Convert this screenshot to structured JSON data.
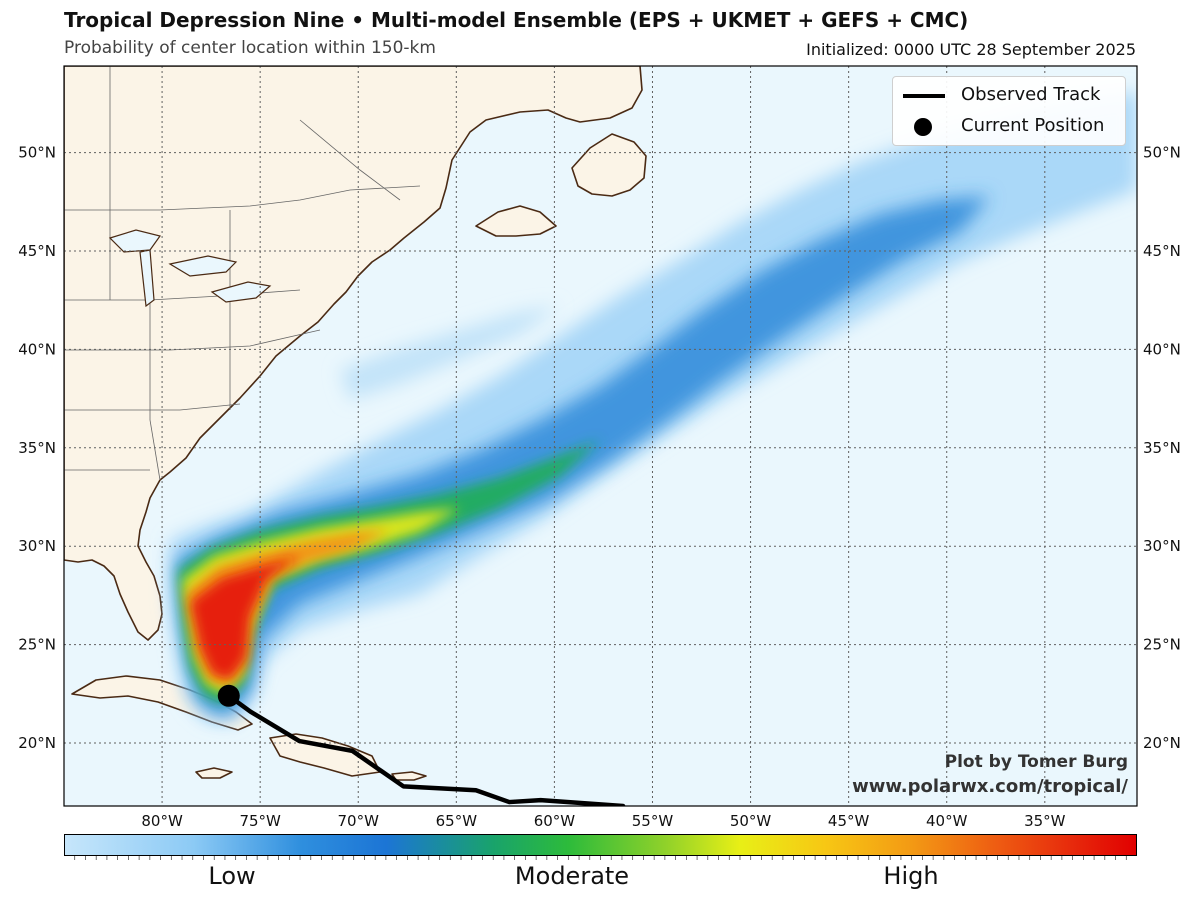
{
  "header": {
    "title": "Tropical Depression Nine • Multi-model Ensemble (EPS + UKMET + GEFS + CMC)",
    "subtitle": "Probability of center location within 150-km",
    "initialized": "Initialized: 0000 UTC 28 September 2025"
  },
  "map": {
    "lon_labels": [
      "80°W",
      "75°W",
      "70°W",
      "65°W",
      "60°W",
      "55°W",
      "50°W",
      "45°W",
      "40°W",
      "35°W"
    ],
    "lat_labels": [
      "20°N",
      "25°N",
      "30°N",
      "35°N",
      "40°N",
      "45°N",
      "50°N"
    ],
    "lon_values": [
      -80,
      -75,
      -70,
      -65,
      -60,
      -55,
      -50,
      -45,
      -40,
      -35
    ],
    "lat_values": [
      20,
      25,
      30,
      35,
      40,
      45,
      50
    ],
    "extent": {
      "lon": [
        -85,
        -30.3
      ],
      "lat": [
        16.8,
        54.4
      ]
    },
    "colors": {
      "ocean": "#eaf7fd",
      "land": "#fbf4e7",
      "coast": "#4a2a14",
      "grid": "#606060"
    },
    "observed_track": [
      [
        -76.6,
        22.4
      ],
      [
        -75.5,
        21.6
      ],
      [
        -73.0,
        20.1
      ],
      [
        -70.3,
        19.6
      ],
      [
        -67.7,
        17.8
      ],
      [
        -64.0,
        17.6
      ],
      [
        -62.3,
        17.0
      ],
      [
        -60.7,
        17.1
      ],
      [
        -56.5,
        16.8
      ]
    ],
    "current_position": [
      -76.6,
      22.4
    ]
  },
  "legend": {
    "items": [
      {
        "label": "Observed Track",
        "icon": "track-line-icon"
      },
      {
        "label": "Current Position",
        "icon": "position-dot-icon"
      }
    ]
  },
  "credit": {
    "author": "Plot by Tomer Burg",
    "url": "www.polarwx.com/tropical/"
  },
  "colorbar": {
    "labels": [
      "Low",
      "Moderate",
      "High"
    ],
    "colors": [
      "#c6e6fb",
      "#2f8fde",
      "#19a36b",
      "#2dbb3b",
      "#e8ef16",
      "#f39a14",
      "#e72a0c",
      "#e10000"
    ]
  }
}
